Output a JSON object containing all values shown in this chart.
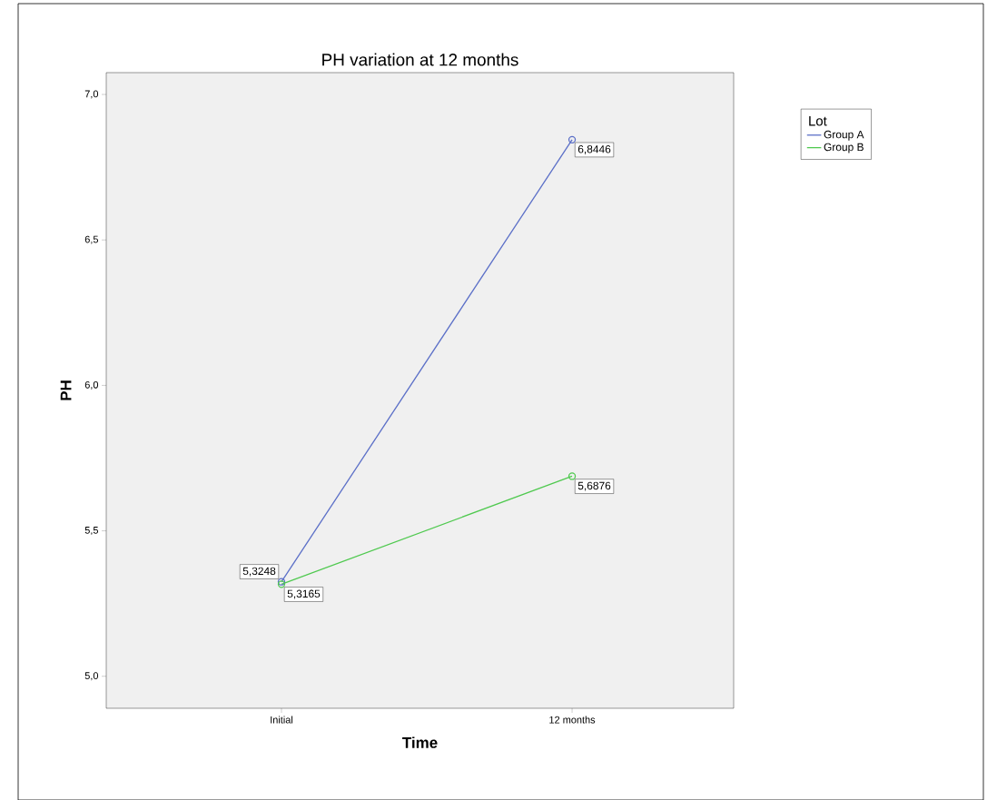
{
  "chart_data": {
    "type": "line",
    "title": "PH variation at 12 months",
    "xlabel": "Time",
    "ylabel": "PH",
    "legend_title": "Lot",
    "categories": [
      "Initial",
      "12 months"
    ],
    "series": [
      {
        "name": "Group A",
        "color": "#5b6fc7",
        "values": [
          5.3248,
          6.8446
        ],
        "value_labels": [
          "5,3248",
          "6,8446"
        ]
      },
      {
        "name": "Group B",
        "color": "#4fc94f",
        "values": [
          5.3165,
          5.6876
        ],
        "value_labels": [
          "5,3165",
          "5,6876"
        ]
      }
    ],
    "ylim": [
      4.89,
      7.075
    ],
    "yticks": [
      {
        "value": 5,
        "label": "5,0"
      },
      {
        "value": 5.5,
        "label": "5,5"
      },
      {
        "value": 6,
        "label": "6,0"
      },
      {
        "value": 6.5,
        "label": "6,5"
      },
      {
        "value": 7,
        "label": "7,0"
      }
    ],
    "legend": "top right",
    "marker": "circle",
    "grid": false
  }
}
